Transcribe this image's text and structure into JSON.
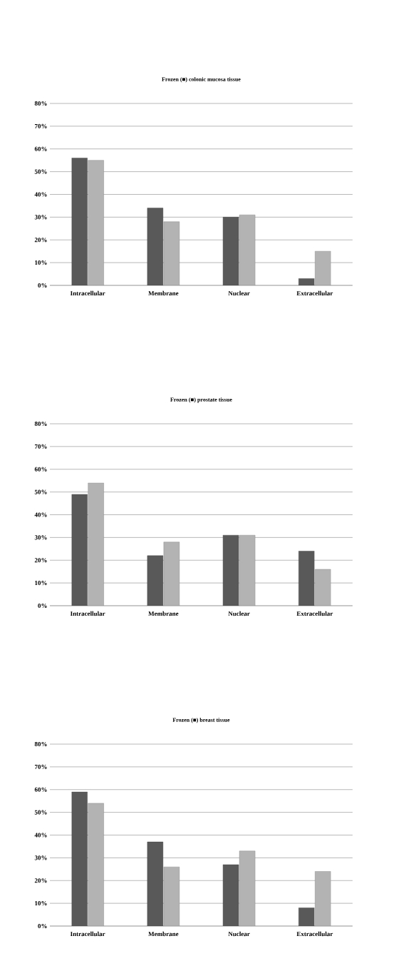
{
  "chart_data": [
    {
      "type": "bar",
      "title": "Frozen (■) colonic mucosa tissue",
      "categories": [
        "Intracellular",
        "Membrane",
        "Nuclear",
        "Extracellular"
      ],
      "series": [
        {
          "color": "#595959",
          "values": [
            56,
            34,
            30,
            3
          ]
        },
        {
          "color": "#b3b3b3",
          "values": [
            55,
            28,
            31,
            15
          ]
        }
      ],
      "ylim": [
        0,
        80
      ],
      "yticks": [
        {
          "value": 0,
          "label": "0%"
        },
        {
          "value": 10,
          "label": "10%"
        },
        {
          "value": 20,
          "label": "20%"
        },
        {
          "value": 30,
          "label": "30%"
        },
        {
          "value": 40,
          "label": "40%"
        },
        {
          "value": 50,
          "label": "50%"
        },
        {
          "value": 60,
          "label": "60%"
        },
        {
          "value": 70,
          "label": "70%"
        },
        {
          "value": 80,
          "label": "80%"
        }
      ],
      "grid": "y"
    },
    {
      "type": "bar",
      "title": "Frozen (■) prostate tissue",
      "categories": [
        "Intracellular",
        "Membrane",
        "Nuclear",
        "Extracellular"
      ],
      "series": [
        {
          "color": "#595959",
          "values": [
            49,
            22,
            31,
            24
          ]
        },
        {
          "color": "#b3b3b3",
          "values": [
            54,
            28,
            31,
            16
          ]
        }
      ],
      "ylim": [
        0,
        80
      ],
      "yticks": [
        {
          "value": 0,
          "label": "0%"
        },
        {
          "value": 10,
          "label": "10%"
        },
        {
          "value": 20,
          "label": "20%"
        },
        {
          "value": 30,
          "label": "30%"
        },
        {
          "value": 40,
          "label": "40%"
        },
        {
          "value": 50,
          "label": "50%"
        },
        {
          "value": 60,
          "label": "60%"
        },
        {
          "value": 70,
          "label": "70%"
        },
        {
          "value": 80,
          "label": "80%"
        }
      ],
      "grid": "y"
    },
    {
      "type": "bar",
      "title": "Frozen (■) breast tissue",
      "categories": [
        "Intracellular",
        "Membrane",
        "Nuclear",
        "Extracellular"
      ],
      "series": [
        {
          "color": "#595959",
          "values": [
            59,
            37,
            27,
            8
          ]
        },
        {
          "color": "#b3b3b3",
          "values": [
            54,
            26,
            33,
            24
          ]
        }
      ],
      "ylim": [
        0,
        80
      ],
      "yticks": [
        {
          "value": 0,
          "label": "0%"
        },
        {
          "value": 10,
          "label": "10%"
        },
        {
          "value": 20,
          "label": "20%"
        },
        {
          "value": 30,
          "label": "30%"
        },
        {
          "value": 40,
          "label": "40%"
        },
        {
          "value": 50,
          "label": "50%"
        },
        {
          "value": 60,
          "label": "60%"
        },
        {
          "value": 70,
          "label": "70%"
        },
        {
          "value": 80,
          "label": "80%"
        }
      ],
      "grid": "y"
    }
  ]
}
